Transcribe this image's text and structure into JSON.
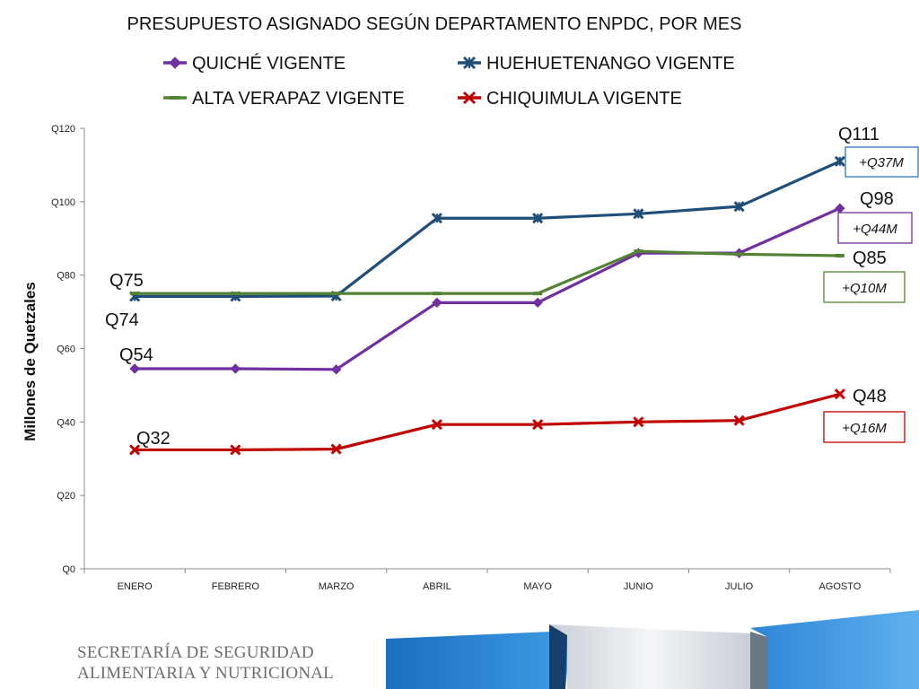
{
  "colors": {
    "quiche": "#7030A0",
    "huehuetenango": "#1F4E79",
    "alta_verapaz": "#548235",
    "chiquimula": "#C00000",
    "huehue_box": "#2E75B6"
  },
  "chart_data": {
    "type": "line",
    "title": "PRESUPUESTO ASIGNADO SEGÚN DEPARTAMENTO ENPDC, POR MES",
    "ylabel": "Millones de Quetzales",
    "xlabel": "",
    "categories": [
      "ENERO",
      "FEBRERO",
      "MARZO",
      "ABRIL",
      "MAYO",
      "JUNIO",
      "JULIO",
      "AGOSTO"
    ],
    "ylim": [
      0,
      120
    ],
    "yticks": [
      {
        "value": 0,
        "label": "Q0"
      },
      {
        "value": 20,
        "label": "Q20"
      },
      {
        "value": 40,
        "label": "Q40"
      },
      {
        "value": 60,
        "label": "Q60"
      },
      {
        "value": 80,
        "label": "Q80"
      },
      {
        "value": 100,
        "label": "Q100"
      },
      {
        "value": 120,
        "label": "Q120"
      }
    ],
    "legend_position": "top",
    "series": [
      {
        "key": "quiche",
        "name": "QUICHÉ VIGENTE",
        "marker": "diamond",
        "values": [
          54.5,
          54.5,
          54.3,
          72.5,
          72.5,
          86.0,
          86.0,
          98.2
        ]
      },
      {
        "key": "huehuetenango",
        "name": "HUEHUETENANGO VIGENTE",
        "marker": "star",
        "values": [
          74.2,
          74.2,
          74.3,
          95.5,
          95.5,
          96.7,
          98.7,
          111.0
        ]
      },
      {
        "key": "alta_verapaz",
        "name": "ALTA VERAPAZ VIGENTE",
        "marker": "dash",
        "values": [
          75.0,
          75.0,
          75.0,
          75.0,
          75.0,
          86.5,
          85.7,
          85.3
        ]
      },
      {
        "key": "chiquimula",
        "name": "CHIQUIMULA VIGENTE",
        "marker": "x",
        "values": [
          32.4,
          32.4,
          32.6,
          39.3,
          39.3,
          40.0,
          40.4,
          47.6
        ]
      }
    ],
    "annotations": {
      "start": [
        {
          "series": "alta_verapaz",
          "text": "Q75"
        },
        {
          "series": "huehuetenango",
          "text": "Q74"
        },
        {
          "series": "quiche",
          "text": "Q54"
        },
        {
          "series": "chiquimula",
          "text": "Q32"
        }
      ],
      "end": [
        {
          "series": "huehuetenango",
          "text": "Q111",
          "delta": "+Q37M"
        },
        {
          "series": "quiche",
          "text": "Q98",
          "delta": "+Q44M"
        },
        {
          "series": "alta_verapaz",
          "text": "Q85",
          "delta": "+Q10M"
        },
        {
          "series": "chiquimula",
          "text": "Q48",
          "delta": "+Q16M"
        }
      ]
    }
  },
  "footer": {
    "logo_line1": "SECRETARÍA DE SEGURIDAD",
    "logo_line2": "ALIMENTARIA Y NUTRICIONAL"
  }
}
